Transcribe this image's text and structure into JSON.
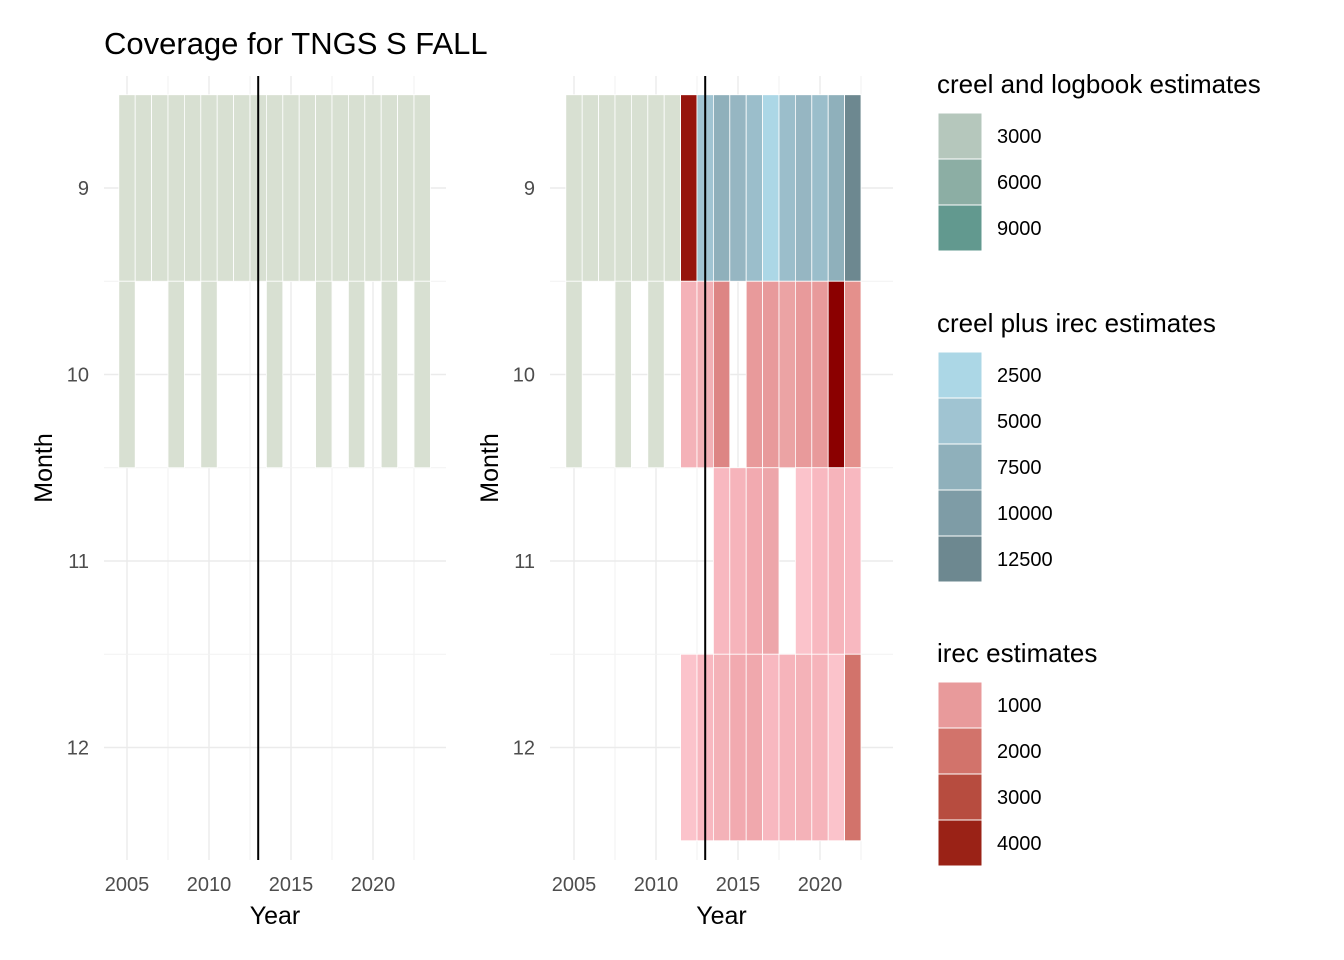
{
  "chart_data": {
    "type": "heatmap",
    "title": "Coverage for TNGS S FALL",
    "x_range": [
      2004.5,
      2023.5
    ],
    "months": [
      9,
      10,
      11,
      12
    ],
    "x_breaks": [
      2005,
      2010,
      2015,
      2020
    ],
    "vline_x": 2013,
    "colors": {
      "survey_fill": "#d8e0d2",
      "creel_logbook": [
        "#b5c7bc",
        "#8caea4",
        "#62998f"
      ],
      "creel_irec": [
        "#acd7e6",
        "#a0c4d2",
        "#8fb0bb",
        "#7e9ca6",
        "#6d8890"
      ],
      "irec": [
        "#e89a9b",
        "#d2736b",
        "#b74c3f",
        "#9a2216"
      ]
    },
    "panels": [
      {
        "xlabel": "Year",
        "ylabel": "Month",
        "cells": [
          {
            "x": 2005,
            "m": 9,
            "c": "#d8e0d2"
          },
          {
            "x": 2006,
            "m": 9,
            "c": "#d8e0d2"
          },
          {
            "x": 2007,
            "m": 9,
            "c": "#d8e0d2"
          },
          {
            "x": 2008,
            "m": 9,
            "c": "#d8e0d2"
          },
          {
            "x": 2009,
            "m": 9,
            "c": "#d8e0d2"
          },
          {
            "x": 2010,
            "m": 9,
            "c": "#d8e0d2"
          },
          {
            "x": 2011,
            "m": 9,
            "c": "#d8e0d2"
          },
          {
            "x": 2012,
            "m": 9,
            "c": "#d8e0d2"
          },
          {
            "x": 2013,
            "m": 9,
            "c": "#d8e0d2"
          },
          {
            "x": 2014,
            "m": 9,
            "c": "#d8e0d2"
          },
          {
            "x": 2015,
            "m": 9,
            "c": "#d8e0d2"
          },
          {
            "x": 2016,
            "m": 9,
            "c": "#d8e0d2"
          },
          {
            "x": 2017,
            "m": 9,
            "c": "#d8e0d2"
          },
          {
            "x": 2018,
            "m": 9,
            "c": "#d8e0d2"
          },
          {
            "x": 2019,
            "m": 9,
            "c": "#d8e0d2"
          },
          {
            "x": 2020,
            "m": 9,
            "c": "#d8e0d2"
          },
          {
            "x": 2021,
            "m": 9,
            "c": "#d8e0d2"
          },
          {
            "x": 2022,
            "m": 9,
            "c": "#d8e0d2"
          },
          {
            "x": 2023,
            "m": 9,
            "c": "#d8e0d2"
          },
          {
            "x": 2005,
            "m": 10,
            "c": "#d8e0d2"
          },
          {
            "x": 2008,
            "m": 10,
            "c": "#d8e0d2"
          },
          {
            "x": 2010,
            "m": 10,
            "c": "#d8e0d2"
          },
          {
            "x": 2014,
            "m": 10,
            "c": "#d8e0d2"
          },
          {
            "x": 2017,
            "m": 10,
            "c": "#d8e0d2"
          },
          {
            "x": 2019,
            "m": 10,
            "c": "#d8e0d2"
          },
          {
            "x": 2021,
            "m": 10,
            "c": "#d8e0d2"
          },
          {
            "x": 2023,
            "m": 10,
            "c": "#d8e0d2"
          }
        ]
      },
      {
        "xlabel": "Year",
        "ylabel": "Month",
        "cells": [
          {
            "x": 2005,
            "m": 9,
            "c": "#d8e0d2"
          },
          {
            "x": 2006,
            "m": 9,
            "c": "#d8e0d2"
          },
          {
            "x": 2007,
            "m": 9,
            "c": "#d8e0d2"
          },
          {
            "x": 2008,
            "m": 9,
            "c": "#d8e0d2"
          },
          {
            "x": 2009,
            "m": 9,
            "c": "#d8e0d2"
          },
          {
            "x": 2010,
            "m": 9,
            "c": "#d8e0d2"
          },
          {
            "x": 2011,
            "m": 9,
            "c": "#d8e0d2"
          },
          {
            "x": 2012,
            "m": 9,
            "c": "#96140d"
          },
          {
            "x": 2013,
            "m": 9,
            "c": "#a0c4d2"
          },
          {
            "x": 2014,
            "m": 9,
            "c": "#8fb0bb"
          },
          {
            "x": 2015,
            "m": 9,
            "c": "#96b6c2"
          },
          {
            "x": 2016,
            "m": 9,
            "c": "#9bbecb"
          },
          {
            "x": 2017,
            "m": 9,
            "c": "#acd7e6"
          },
          {
            "x": 2018,
            "m": 9,
            "c": "#9bbecb"
          },
          {
            "x": 2019,
            "m": 9,
            "c": "#96b6c2"
          },
          {
            "x": 2020,
            "m": 9,
            "c": "#9bbecb"
          },
          {
            "x": 2021,
            "m": 9,
            "c": "#8fb0bb"
          },
          {
            "x": 2022,
            "m": 9,
            "c": "#6d8890"
          },
          {
            "x": 2005,
            "m": 10,
            "c": "#d8e0d2"
          },
          {
            "x": 2008,
            "m": 10,
            "c": "#d8e0d2"
          },
          {
            "x": 2010,
            "m": 10,
            "c": "#d8e0d2"
          },
          {
            "x": 2012,
            "m": 10,
            "c": "#f4b2b8"
          },
          {
            "x": 2013,
            "m": 10,
            "c": "#f2b0b5"
          },
          {
            "x": 2014,
            "m": 10,
            "c": "#dd8584"
          },
          {
            "x": 2016,
            "m": 10,
            "c": "#e89a9b"
          },
          {
            "x": 2017,
            "m": 10,
            "c": "#e89a9b"
          },
          {
            "x": 2018,
            "m": 10,
            "c": "#eba3a4"
          },
          {
            "x": 2019,
            "m": 10,
            "c": "#e89a9b"
          },
          {
            "x": 2020,
            "m": 10,
            "c": "#e89a9b"
          },
          {
            "x": 2021,
            "m": 10,
            "c": "#8b0000"
          },
          {
            "x": 2022,
            "m": 10,
            "c": "#e4908c"
          },
          {
            "x": 2014,
            "m": 11,
            "c": "#f8b8c0"
          },
          {
            "x": 2015,
            "m": 11,
            "c": "#f6b4bb"
          },
          {
            "x": 2016,
            "m": 11,
            "c": "#f2aab0"
          },
          {
            "x": 2017,
            "m": 11,
            "c": "#eda6aa"
          },
          {
            "x": 2019,
            "m": 11,
            "c": "#fbc3cb"
          },
          {
            "x": 2020,
            "m": 11,
            "c": "#f8b8c0"
          },
          {
            "x": 2021,
            "m": 11,
            "c": "#f6b4bb"
          },
          {
            "x": 2022,
            "m": 11,
            "c": "#f8b8c0"
          },
          {
            "x": 2012,
            "m": 12,
            "c": "#fbc3cb"
          },
          {
            "x": 2013,
            "m": 12,
            "c": "#f8b8c0"
          },
          {
            "x": 2014,
            "m": 12,
            "c": "#f4b2b8"
          },
          {
            "x": 2015,
            "m": 12,
            "c": "#f2aab0"
          },
          {
            "x": 2016,
            "m": 12,
            "c": "#f0a8ad"
          },
          {
            "x": 2017,
            "m": 12,
            "c": "#f8b8c0"
          },
          {
            "x": 2018,
            "m": 12,
            "c": "#f6b4bb"
          },
          {
            "x": 2019,
            "m": 12,
            "c": "#f4b2b8"
          },
          {
            "x": 2020,
            "m": 12,
            "c": "#f6b4bb"
          },
          {
            "x": 2021,
            "m": 12,
            "c": "#fbc3cb"
          },
          {
            "x": 2022,
            "m": 12,
            "c": "#d2736b"
          }
        ]
      }
    ],
    "legends": [
      {
        "title": "creel and logbook estimates",
        "entries": [
          {
            "label": "3000",
            "color": "#b5c7bc"
          },
          {
            "label": "6000",
            "color": "#8caea4"
          },
          {
            "label": "9000",
            "color": "#62998f"
          }
        ]
      },
      {
        "title": "creel plus irec estimates",
        "entries": [
          {
            "label": "2500",
            "color": "#acd7e6"
          },
          {
            "label": "5000",
            "color": "#a0c4d2"
          },
          {
            "label": "7500",
            "color": "#8fb0bb"
          },
          {
            "label": "10000",
            "color": "#7e9ca6"
          },
          {
            "label": "12500",
            "color": "#6d8890"
          }
        ]
      },
      {
        "title": "irec estimates",
        "entries": [
          {
            "label": "1000",
            "color": "#e89a9b"
          },
          {
            "label": "2000",
            "color": "#d2736b"
          },
          {
            "label": "3000",
            "color": "#b74c3f"
          },
          {
            "label": "4000",
            "color": "#9a2216"
          }
        ]
      }
    ]
  }
}
